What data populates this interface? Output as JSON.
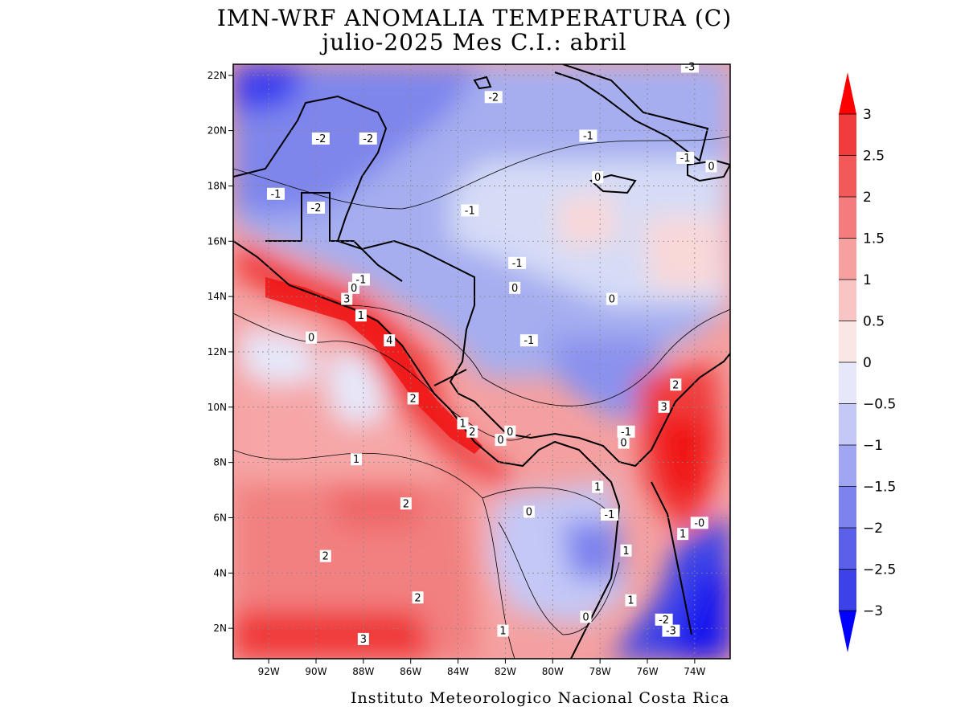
{
  "title_line1": "IMN-WRF  ANOMALIA TEMPERATURA (C)",
  "title_line2": "julio-2025 Mes C.I.: abril",
  "credit": "Instituto Meteorologico Nacional Costa Rica",
  "map": {
    "lon_range": [
      -93.5,
      -72.5
    ],
    "lat_range": [
      0.9,
      22.4
    ],
    "lat_ticks": [
      "22N",
      "20N",
      "18N",
      "16N",
      "14N",
      "12N",
      "10N",
      "8N",
      "6N",
      "4N",
      "2N"
    ],
    "lon_ticks": [
      "92W",
      "90W",
      "88W",
      "86W",
      "84W",
      "82W",
      "80W",
      "78W",
      "76W",
      "74W"
    ],
    "contour_labels": [
      {
        "t": "-3",
        "lon": -74.2,
        "lat": 22.3
      },
      {
        "t": "-2",
        "lon": -82.5,
        "lat": 21.2
      },
      {
        "t": "-2",
        "lon": -89.8,
        "lat": 19.7
      },
      {
        "t": "-2",
        "lon": -87.8,
        "lat": 19.7
      },
      {
        "t": "-1",
        "lon": -78.5,
        "lat": 19.8
      },
      {
        "t": "-1",
        "lon": -74.4,
        "lat": 19.0
      },
      {
        "t": "0",
        "lon": -73.3,
        "lat": 18.7
      },
      {
        "t": "0",
        "lon": -78.1,
        "lat": 18.3
      },
      {
        "t": "-1",
        "lon": -91.7,
        "lat": 17.7
      },
      {
        "t": "-2",
        "lon": -90.0,
        "lat": 17.2
      },
      {
        "t": "-1",
        "lon": -83.5,
        "lat": 17.1
      },
      {
        "t": "-1",
        "lon": -81.5,
        "lat": 15.2
      },
      {
        "t": "-1",
        "lon": -88.1,
        "lat": 14.6
      },
      {
        "t": "0",
        "lon": -88.4,
        "lat": 14.3
      },
      {
        "t": "0",
        "lon": -81.6,
        "lat": 14.3
      },
      {
        "t": "3",
        "lon": -88.7,
        "lat": 13.9
      },
      {
        "t": "0",
        "lon": -77.5,
        "lat": 13.9
      },
      {
        "t": "1",
        "lon": -88.1,
        "lat": 13.3
      },
      {
        "t": "0",
        "lon": -90.2,
        "lat": 12.5
      },
      {
        "t": "4",
        "lon": -86.9,
        "lat": 12.4
      },
      {
        "t": "-1",
        "lon": -81.0,
        "lat": 12.4
      },
      {
        "t": "2",
        "lon": -74.8,
        "lat": 10.8
      },
      {
        "t": "2",
        "lon": -85.9,
        "lat": 10.3
      },
      {
        "t": "3",
        "lon": -75.3,
        "lat": 10.0
      },
      {
        "t": "1",
        "lon": -83.8,
        "lat": 9.4
      },
      {
        "t": "2",
        "lon": -83.4,
        "lat": 9.1
      },
      {
        "t": "0",
        "lon": -82.2,
        "lat": 8.8
      },
      {
        "t": "0",
        "lon": -81.8,
        "lat": 9.1
      },
      {
        "t": "-1",
        "lon": -76.9,
        "lat": 9.1
      },
      {
        "t": "0",
        "lon": -77.0,
        "lat": 8.7
      },
      {
        "t": "1",
        "lon": -88.3,
        "lat": 8.1
      },
      {
        "t": "1",
        "lon": -78.1,
        "lat": 7.1
      },
      {
        "t": "2",
        "lon": -86.2,
        "lat": 6.5
      },
      {
        "t": "0",
        "lon": -81.0,
        "lat": 6.2
      },
      {
        "t": "-1",
        "lon": -77.6,
        "lat": 6.1
      },
      {
        "t": "-0",
        "lon": -73.8,
        "lat": 5.8
      },
      {
        "t": "1",
        "lon": -74.5,
        "lat": 5.4
      },
      {
        "t": "1",
        "lon": -76.9,
        "lat": 4.8
      },
      {
        "t": "2",
        "lon": -89.6,
        "lat": 4.6
      },
      {
        "t": "2",
        "lon": -85.7,
        "lat": 3.1
      },
      {
        "t": "1",
        "lon": -76.7,
        "lat": 3.0
      },
      {
        "t": "-2",
        "lon": -75.3,
        "lat": 2.3
      },
      {
        "t": "-3",
        "lon": -75.0,
        "lat": 1.9
      },
      {
        "t": "1",
        "lon": -82.1,
        "lat": 1.9
      },
      {
        "t": "3",
        "lon": -88.0,
        "lat": 1.6
      },
      {
        "t": "0",
        "lon": -78.6,
        "lat": 2.4
      }
    ]
  },
  "colorbar": {
    "levels": [
      "3",
      "2.5",
      "2",
      "1.5",
      "1",
      "0.5",
      "0",
      "−0.5",
      "−1",
      "−1.5",
      "−2",
      "−2.5",
      "−3"
    ],
    "colors_warm_to_cold": [
      "#f01414",
      "#f03c3c",
      "#f25a5a",
      "#f47c7c",
      "#f6a0a0",
      "#f9c4c4",
      "#fbe6e6",
      "#e6e8fa",
      "#c4c8f6",
      "#a0a6f2",
      "#7c82ee",
      "#5a60ea",
      "#3c42e8",
      "#1414f0"
    ],
    "over_color": "#ff0000",
    "under_color": "#0000ff"
  }
}
